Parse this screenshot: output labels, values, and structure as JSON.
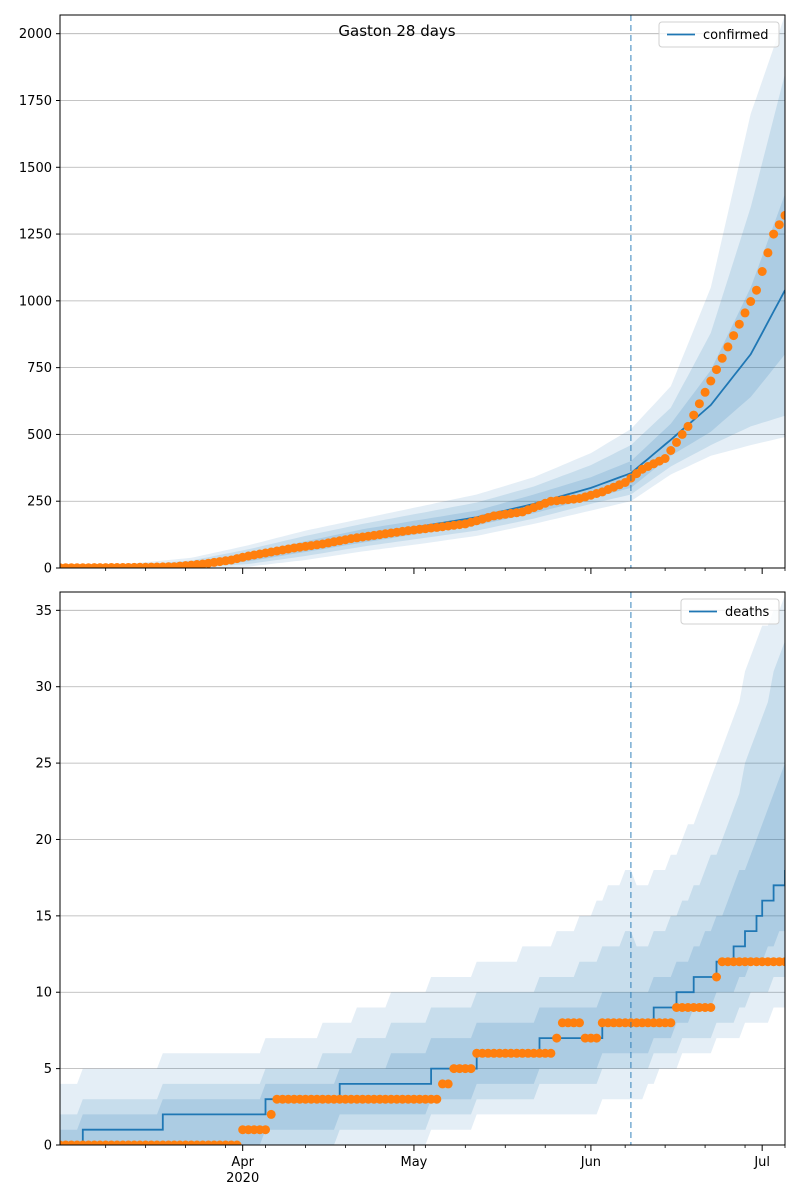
{
  "chart_data": [
    {
      "type": "line",
      "title": "Gaston 28 days",
      "legend": {
        "label": "confirmed",
        "placement": "top-right"
      },
      "ylim": [
        0,
        2070
      ],
      "yticks": [
        0,
        250,
        500,
        750,
        1000,
        1250,
        1500,
        1750,
        2000
      ],
      "ytick_labels": [
        "0",
        "250",
        "500",
        "750",
        "1000",
        "1250",
        "1500",
        "1750",
        "2000"
      ],
      "forecast_start": "2020-06-08",
      "colors": {
        "line": "#1f77b4",
        "observed": "#ff7f0e",
        "band": "#1f77b4",
        "grid": "#b0b0b0"
      },
      "grid": true,
      "model": {
        "x": [
          "2020-03-03",
          "2020-03-13",
          "2020-03-23",
          "2020-04-02",
          "2020-04-12",
          "2020-04-22",
          "2020-05-02",
          "2020-05-12",
          "2020-05-22",
          "2020-06-01",
          "2020-06-08",
          "2020-06-15",
          "2020-06-22",
          "2020-06-29",
          "2020-07-05"
        ],
        "y": [
          2,
          3,
          10,
          40,
          80,
          120,
          155,
          190,
          240,
          300,
          355,
          480,
          610,
          800,
          1040
        ],
        "b1_lo": [
          0,
          0,
          3,
          25,
          60,
          95,
          128,
          160,
          205,
          260,
          300,
          420,
          510,
          640,
          800
        ],
        "b1_hi": [
          5,
          8,
          18,
          55,
          100,
          145,
          180,
          215,
          275,
          340,
          400,
          540,
          740,
          1050,
          1400
        ],
        "b2_lo": [
          0,
          0,
          1,
          15,
          45,
          80,
          110,
          140,
          185,
          240,
          275,
          380,
          460,
          530,
          570
        ],
        "b2_hi": [
          8,
          12,
          28,
          70,
          120,
          165,
          205,
          245,
          305,
          385,
          460,
          600,
          880,
          1350,
          1850
        ],
        "b3_lo": [
          0,
          0,
          0,
          5,
          30,
          62,
          90,
          120,
          165,
          215,
          250,
          350,
          420,
          460,
          490
        ],
        "b3_hi": [
          12,
          18,
          38,
          85,
          140,
          185,
          230,
          275,
          340,
          430,
          520,
          680,
          1050,
          1700,
          2070
        ]
      },
      "observed": {
        "x": [
          "2020-03-02",
          "2020-03-12",
          "2020-03-20",
          "2020-03-25",
          "2020-03-30",
          "2020-04-02",
          "2020-04-06",
          "2020-04-10",
          "2020-04-15",
          "2020-04-20",
          "2020-04-25",
          "2020-04-30",
          "2020-05-05",
          "2020-05-10",
          "2020-05-15",
          "2020-05-20",
          "2020-05-25",
          "2020-05-30",
          "2020-06-03",
          "2020-06-07",
          "2020-06-10",
          "2020-06-14",
          "2020-06-18",
          "2020-06-22",
          "2020-06-26",
          "2020-06-30",
          "2020-07-03",
          "2020-07-05"
        ],
        "y": [
          1,
          2,
          5,
          15,
          30,
          45,
          60,
          75,
          90,
          110,
          125,
          140,
          152,
          165,
          195,
          210,
          250,
          260,
          285,
          320,
          370,
          410,
          530,
          700,
          870,
          1040,
          1250,
          1320
        ]
      }
    },
    {
      "type": "line",
      "title": "",
      "legend": {
        "label": "deaths",
        "placement": "top-right"
      },
      "ylim": [
        0,
        36.2
      ],
      "yticks": [
        0,
        5,
        10,
        15,
        20,
        25,
        30,
        35
      ],
      "ytick_labels": [
        "0",
        "5",
        "10",
        "15",
        "20",
        "25",
        "30",
        "35"
      ],
      "xticks": [
        "2020-04-01",
        "2020-05-01",
        "2020-06-01",
        "2020-07-01"
      ],
      "xtick_labels": [
        "Apr",
        "May",
        "Jun",
        "Jul"
      ],
      "xtick_sublabel": "2020",
      "forecast_start": "2020-06-08",
      "colors": {
        "line": "#1f77b4",
        "observed": "#ff7f0e",
        "band": "#1f77b4",
        "grid": "#b0b0b0"
      },
      "grid": true,
      "model": {
        "x": [
          "2020-03-01",
          "2020-03-06",
          "2020-03-29",
          "2020-04-12",
          "2020-04-23",
          "2020-05-01",
          "2020-05-07",
          "2020-05-17",
          "2020-05-28",
          "2020-06-08",
          "2020-06-09",
          "2020-06-14",
          "2020-06-20",
          "2020-06-25",
          "2020-06-30",
          "2020-07-05"
        ],
        "y": [
          0,
          1,
          2,
          3,
          4,
          4,
          5,
          6,
          7,
          8,
          8,
          9,
          11,
          12,
          15,
          18
        ],
        "b1_lo": [
          0,
          0,
          0,
          1,
          2,
          2,
          3,
          4,
          5,
          6,
          6,
          7,
          9,
          10,
          12,
          14
        ],
        "b1_hi": [
          1,
          2,
          3,
          4,
          5,
          6,
          7,
          8,
          9,
          10,
          10,
          11,
          13,
          16,
          20,
          25
        ],
        "b2_lo": [
          0,
          0,
          0,
          0,
          1,
          1,
          2,
          3,
          4,
          5,
          5,
          6,
          7,
          8,
          10,
          11
        ],
        "b2_hi": [
          2,
          3,
          4,
          5,
          7,
          8,
          9,
          10,
          11,
          14,
          13,
          14,
          17,
          21,
          27,
          33
        ],
        "b3_lo": [
          0,
          0,
          0,
          0,
          0,
          0,
          1,
          2,
          2,
          3,
          3,
          5,
          6,
          7,
          8,
          9
        ],
        "b3_hi": [
          4,
          5,
          6,
          7,
          9,
          10,
          11,
          12,
          14,
          18,
          17,
          18,
          22,
          27,
          33,
          36
        ]
      },
      "observed": {
        "x": [
          "2020-03-01",
          "2020-03-10",
          "2020-03-20",
          "2020-03-31",
          "2020-04-01",
          "2020-04-05",
          "2020-04-06",
          "2020-04-08",
          "2020-04-15",
          "2020-04-25",
          "2020-05-05",
          "2020-05-06",
          "2020-05-10",
          "2020-05-14",
          "2020-05-20",
          "2020-05-25",
          "2020-05-26",
          "2020-05-27",
          "2020-06-02",
          "2020-06-03",
          "2020-06-10",
          "2020-06-15",
          "2020-06-16",
          "2020-06-22",
          "2020-06-23",
          "2020-06-24",
          "2020-06-30",
          "2020-07-05"
        ],
        "y": [
          0,
          0,
          0,
          0,
          1,
          1,
          2,
          3,
          3,
          3,
          3,
          4,
          5,
          6,
          6,
          6,
          7,
          8,
          7,
          8,
          8,
          8,
          9,
          9,
          11,
          12,
          12,
          12
        ]
      }
    }
  ]
}
